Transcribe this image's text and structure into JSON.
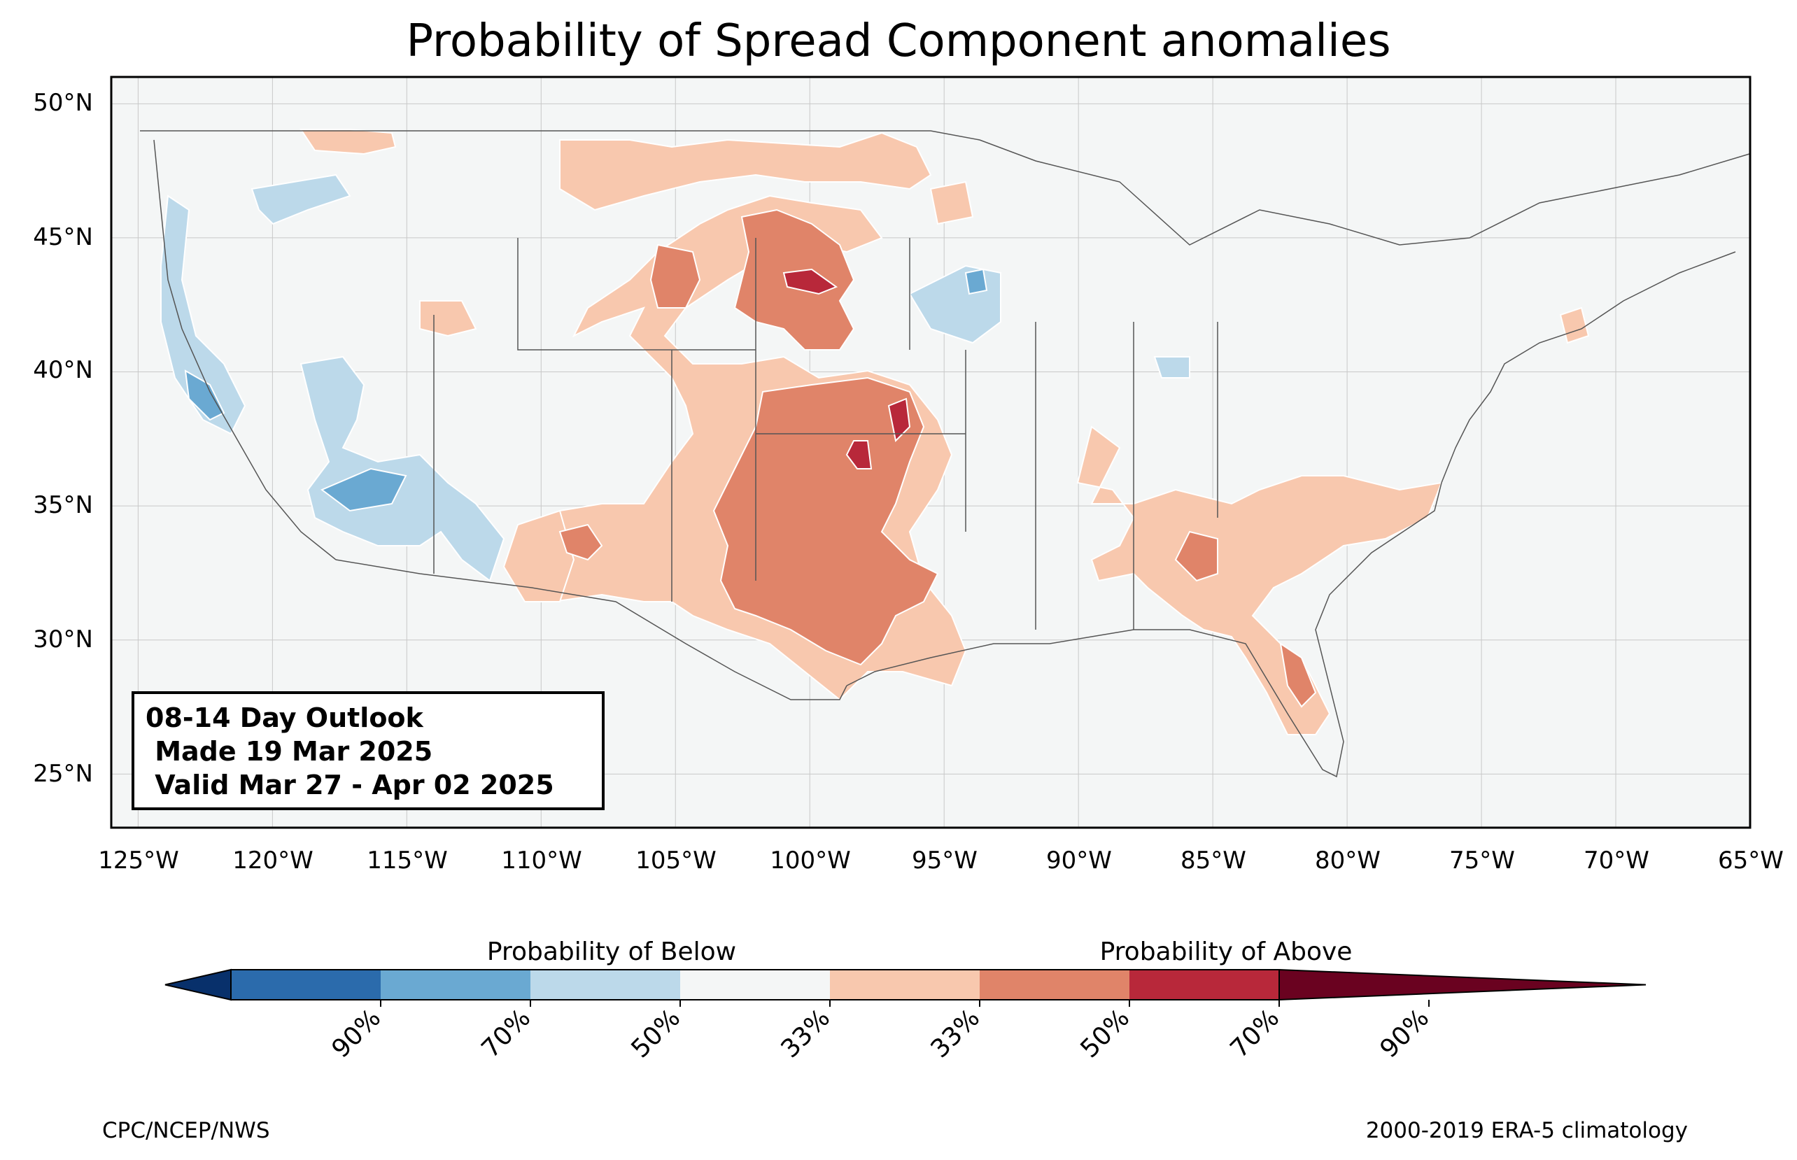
{
  "title": "Probability of Spread Component anomalies",
  "map": {
    "lon_range": [
      -126,
      -65
    ],
    "lat_range": [
      23,
      51
    ],
    "lat_ticks": [
      "25°N",
      "30°N",
      "35°N",
      "40°N",
      "45°N",
      "50°N"
    ],
    "lon_ticks": [
      "125°W",
      "120°W",
      "115°W",
      "110°W",
      "105°W",
      "100°W",
      "95°W",
      "90°W",
      "85°W",
      "80°W",
      "75°W",
      "70°W",
      "65°W"
    ],
    "gridlines": true,
    "ocean_color": "#f4f6f6",
    "anomaly_regions": [
      {
        "category": "above_33",
        "area": "Great Plains from Dakotas to Texas"
      },
      {
        "category": "above_50",
        "area": "Central/Southern Plains, Nebraska, Kansas, Oklahoma, Texas"
      },
      {
        "category": "above_70",
        "area": "South Dakota, eastern Kansas"
      },
      {
        "category": "above_33",
        "area": "Southeast: Georgia, Carolinas, Florida"
      },
      {
        "category": "above_50",
        "area": "Florida peninsula, Georgia"
      },
      {
        "category": "below_33",
        "area": "California, Nevada, Arizona, Iowa"
      },
      {
        "category": "below_50",
        "area": "Northern California, southern Nevada"
      }
    ]
  },
  "info_box": {
    "line1": "08-14 Day Outlook",
    "line2": " Made 19 Mar 2025",
    "line3": " Valid Mar 27 - Apr 02 2025"
  },
  "colorbar": {
    "label_below": "Probability of Below",
    "label_above": "Probability of Above",
    "colors": [
      "#08306b",
      "#2b6bac",
      "#6aa9d2",
      "#bcd9ea",
      "#f4f6f6",
      "#f8c8ae",
      "#e08469",
      "#b8283a",
      "#6a0220"
    ],
    "tick_labels": [
      "90%",
      "70%",
      "50%",
      "33%",
      "33%",
      "50%",
      "70%",
      "90%"
    ]
  },
  "footer": {
    "left": "CPC/NCEP/NWS",
    "right": "2000-2019 ERA-5 climatology"
  }
}
